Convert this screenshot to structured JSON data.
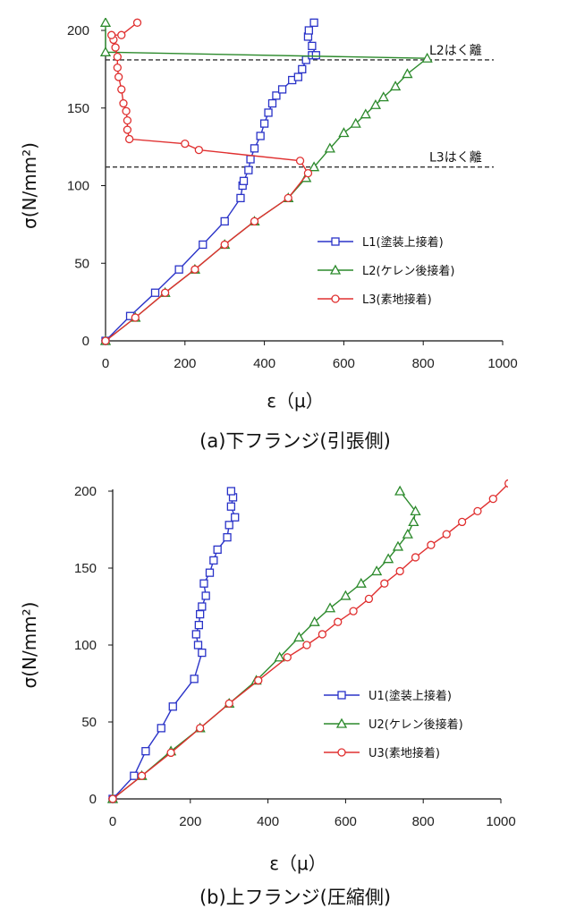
{
  "chart_data": [
    {
      "type": "line",
      "caption": "(a)下フランジ(引張側)",
      "xlabel": "ε（μ）",
      "ylabel": "σ(N/mm²)",
      "xlim": [
        0,
        1000
      ],
      "ylim": [
        0,
        200
      ],
      "x_ticks": [
        "0",
        "200",
        "400",
        "600",
        "800",
        "1000"
      ],
      "y_ticks": [
        "0",
        "50",
        "100",
        "150",
        "200"
      ],
      "legend_position": "center-right",
      "annotations": [
        {
          "text": "L2はく離",
          "y": 181
        },
        {
          "text": "L3はく離",
          "y": 112
        }
      ],
      "series": [
        {
          "name": "L1(塗装上接着)",
          "marker": "square",
          "color": "#2a33c8",
          "points": [
            [
              0,
              0
            ],
            [
              62,
              16
            ],
            [
              125,
              31
            ],
            [
              185,
              46
            ],
            [
              245,
              62
            ],
            [
              300,
              77
            ],
            [
              340,
              92
            ],
            [
              345,
              100
            ],
            [
              348,
              103
            ],
            [
              360,
              110
            ],
            [
              365,
              117
            ],
            [
              375,
              124
            ],
            [
              390,
              132
            ],
            [
              400,
              140
            ],
            [
              410,
              147
            ],
            [
              420,
              153
            ],
            [
              430,
              158
            ],
            [
              445,
              162
            ],
            [
              470,
              168
            ],
            [
              485,
              170
            ],
            [
              495,
              175
            ],
            [
              505,
              181
            ],
            [
              520,
              184
            ],
            [
              530,
              184
            ],
            [
              520,
              190
            ],
            [
              510,
              196
            ],
            [
              512,
              200
            ],
            [
              525,
              205
            ]
          ]
        },
        {
          "name": "L2(ケレン後接着)",
          "marker": "triangle",
          "color": "#2c8a2c",
          "points": [
            [
              0,
              0
            ],
            [
              75,
              15
            ],
            [
              150,
              31
            ],
            [
              225,
              46
            ],
            [
              300,
              62
            ],
            [
              375,
              77
            ],
            [
              460,
              92
            ],
            [
              505,
              105
            ],
            [
              525,
              112
            ],
            [
              565,
              124
            ],
            [
              600,
              134
            ],
            [
              630,
              140
            ],
            [
              655,
              146
            ],
            [
              680,
              152
            ],
            [
              700,
              157
            ],
            [
              730,
              164
            ],
            [
              760,
              172
            ],
            [
              810,
              182
            ],
            [
              0,
              186
            ],
            [
              0,
              205
            ]
          ]
        },
        {
          "name": "L3(素地接着)",
          "marker": "circle",
          "color": "#e03030",
          "points": [
            [
              0,
              0
            ],
            [
              75,
              15
            ],
            [
              150,
              31
            ],
            [
              225,
              46
            ],
            [
              300,
              62
            ],
            [
              375,
              77
            ],
            [
              460,
              92
            ],
            [
              510,
              108
            ],
            [
              490,
              116
            ],
            [
              235,
              123
            ],
            [
              200,
              127
            ],
            [
              60,
              130
            ],
            [
              55,
              136
            ],
            [
              55,
              142
            ],
            [
              52,
              148
            ],
            [
              45,
              153
            ],
            [
              40,
              162
            ],
            [
              33,
              170
            ],
            [
              30,
              176
            ],
            [
              30,
              183
            ],
            [
              25,
              189
            ],
            [
              20,
              194
            ],
            [
              15,
              197
            ],
            [
              40,
              197
            ],
            [
              80,
              205
            ]
          ]
        }
      ]
    },
    {
      "type": "line",
      "caption": "(b)上フランジ(圧縮側)",
      "xlabel": "ε（μ）",
      "ylabel": "σ(N/mm²)",
      "xlim": [
        0,
        1000
      ],
      "ylim": [
        0,
        200
      ],
      "x_ticks": [
        "0",
        "200",
        "400",
        "600",
        "800",
        "1000"
      ],
      "y_ticks": [
        "0",
        "50",
        "100",
        "150",
        "200"
      ],
      "legend_position": "center-right",
      "series": [
        {
          "name": "U1(塗装上接着)",
          "marker": "square",
          "color": "#2a33c8",
          "points": [
            [
              0,
              0
            ],
            [
              55,
              15
            ],
            [
              85,
              31
            ],
            [
              125,
              46
            ],
            [
              155,
              60
            ],
            [
              210,
              78
            ],
            [
              230,
              95
            ],
            [
              220,
              100
            ],
            [
              215,
              107
            ],
            [
              222,
              113
            ],
            [
              225,
              120
            ],
            [
              230,
              125
            ],
            [
              240,
              132
            ],
            [
              235,
              140
            ],
            [
              250,
              147
            ],
            [
              260,
              155
            ],
            [
              270,
              162
            ],
            [
              295,
              170
            ],
            [
              300,
              178
            ],
            [
              315,
              183
            ],
            [
              305,
              190
            ],
            [
              310,
              196
            ],
            [
              305,
              200
            ]
          ]
        },
        {
          "name": "U2(ケレン後接着)",
          "marker": "triangle",
          "color": "#2c8a2c",
          "points": [
            [
              0,
              0
            ],
            [
              75,
              15
            ],
            [
              150,
              31
            ],
            [
              225,
              46
            ],
            [
              300,
              62
            ],
            [
              370,
              77
            ],
            [
              430,
              92
            ],
            [
              480,
              105
            ],
            [
              520,
              115
            ],
            [
              560,
              124
            ],
            [
              600,
              132
            ],
            [
              640,
              140
            ],
            [
              680,
              148
            ],
            [
              710,
              156
            ],
            [
              735,
              164
            ],
            [
              760,
              172
            ],
            [
              775,
              180
            ],
            [
              780,
              187
            ],
            [
              740,
              200
            ]
          ]
        },
        {
          "name": "U3(素地接着)",
          "marker": "circle",
          "color": "#e03030",
          "points": [
            [
              0,
              0
            ],
            [
              75,
              15
            ],
            [
              150,
              30
            ],
            [
              225,
              46
            ],
            [
              300,
              62
            ],
            [
              375,
              77
            ],
            [
              450,
              92
            ],
            [
              500,
              100
            ],
            [
              540,
              107
            ],
            [
              580,
              115
            ],
            [
              620,
              122
            ],
            [
              660,
              130
            ],
            [
              700,
              140
            ],
            [
              740,
              148
            ],
            [
              780,
              157
            ],
            [
              820,
              165
            ],
            [
              860,
              172
            ],
            [
              900,
              180
            ],
            [
              940,
              187
            ],
            [
              980,
              195
            ],
            [
              1020,
              205
            ]
          ]
        }
      ]
    }
  ]
}
